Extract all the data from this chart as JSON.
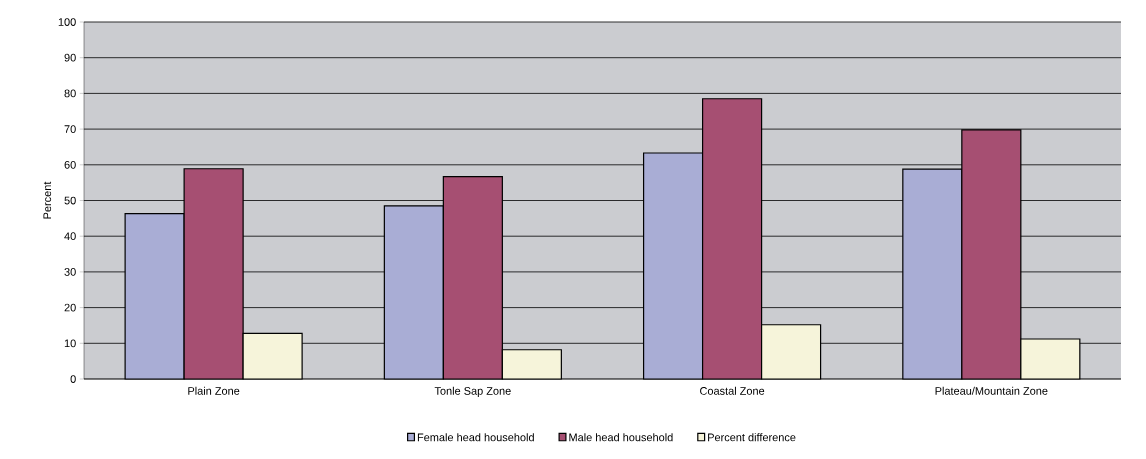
{
  "chart_data": {
    "type": "bar",
    "ylabel": "Percent",
    "categories": [
      "Plain Zone",
      "Tonle Sap Zone",
      "Coastal Zone",
      "Plateau/Mountain Zone"
    ],
    "series": [
      {
        "name": "Female head household",
        "color": "#a9add5",
        "values": [
          46.3,
          48.5,
          63.3,
          58.8
        ]
      },
      {
        "name": "Male head household",
        "color": "#a64f72",
        "values": [
          58.9,
          56.7,
          78.5,
          69.8
        ]
      },
      {
        "name": "Percent difference",
        "color": "#f6f4da",
        "values": [
          12.8,
          8.2,
          15.2,
          11.2
        ]
      }
    ],
    "ylim": [
      0,
      100
    ],
    "yticks": [
      0,
      10,
      20,
      30,
      40,
      50,
      60,
      70,
      80,
      90,
      100
    ],
    "grid": "y",
    "legend": "bottom"
  }
}
